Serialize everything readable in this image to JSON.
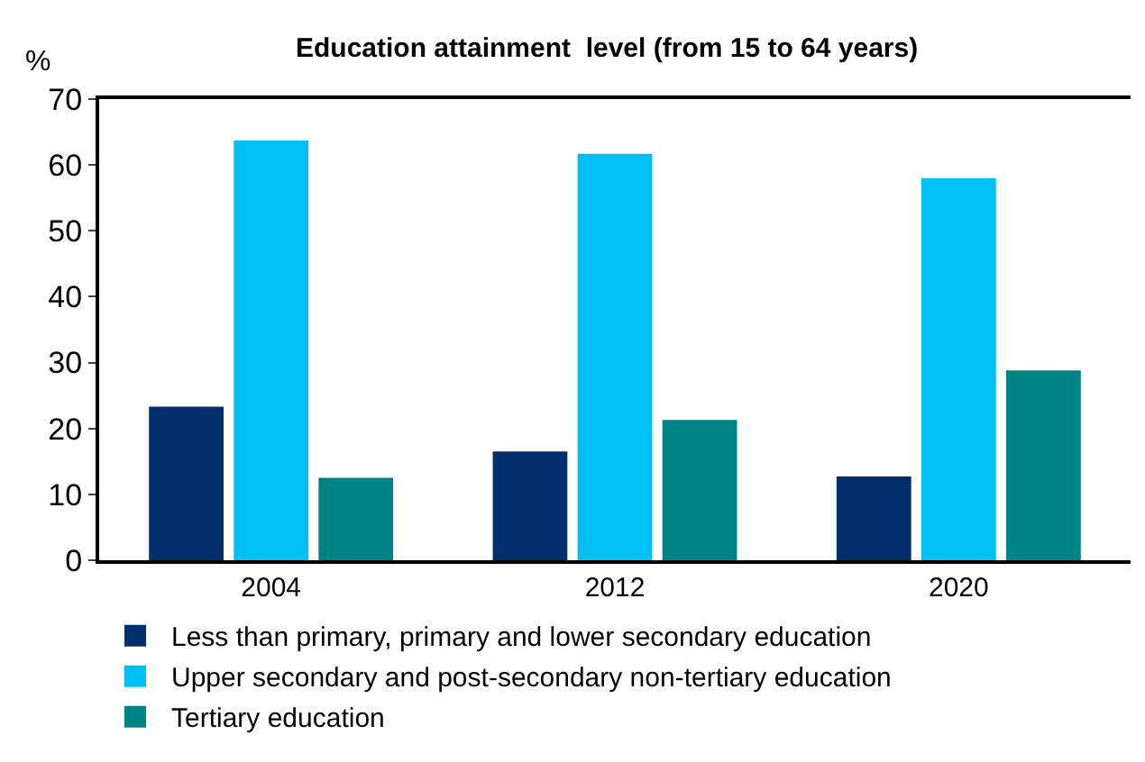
{
  "chart_data": {
    "type": "bar",
    "title": "Education attainment  level (from 15 to 64 years)",
    "ylabel": "%",
    "categories": [
      "2004",
      "2012",
      "2020"
    ],
    "series": [
      {
        "name": "Less than primary, primary and lower secondary education",
        "color": "#002f6c",
        "values": [
          23.3,
          16.5,
          12.7
        ]
      },
      {
        "name": "Upper secondary and post-secondary non-tertiary education",
        "color": "#00bff3",
        "values": [
          63.7,
          61.7,
          58.0
        ]
      },
      {
        "name": "Tertiary education",
        "color": "#008385",
        "values": [
          12.5,
          21.3,
          28.8
        ]
      }
    ],
    "ylim": [
      0,
      70
    ],
    "yticks": [
      0,
      10,
      20,
      30,
      40,
      50,
      60,
      70
    ],
    "grid": false,
    "legend": "bottom"
  }
}
